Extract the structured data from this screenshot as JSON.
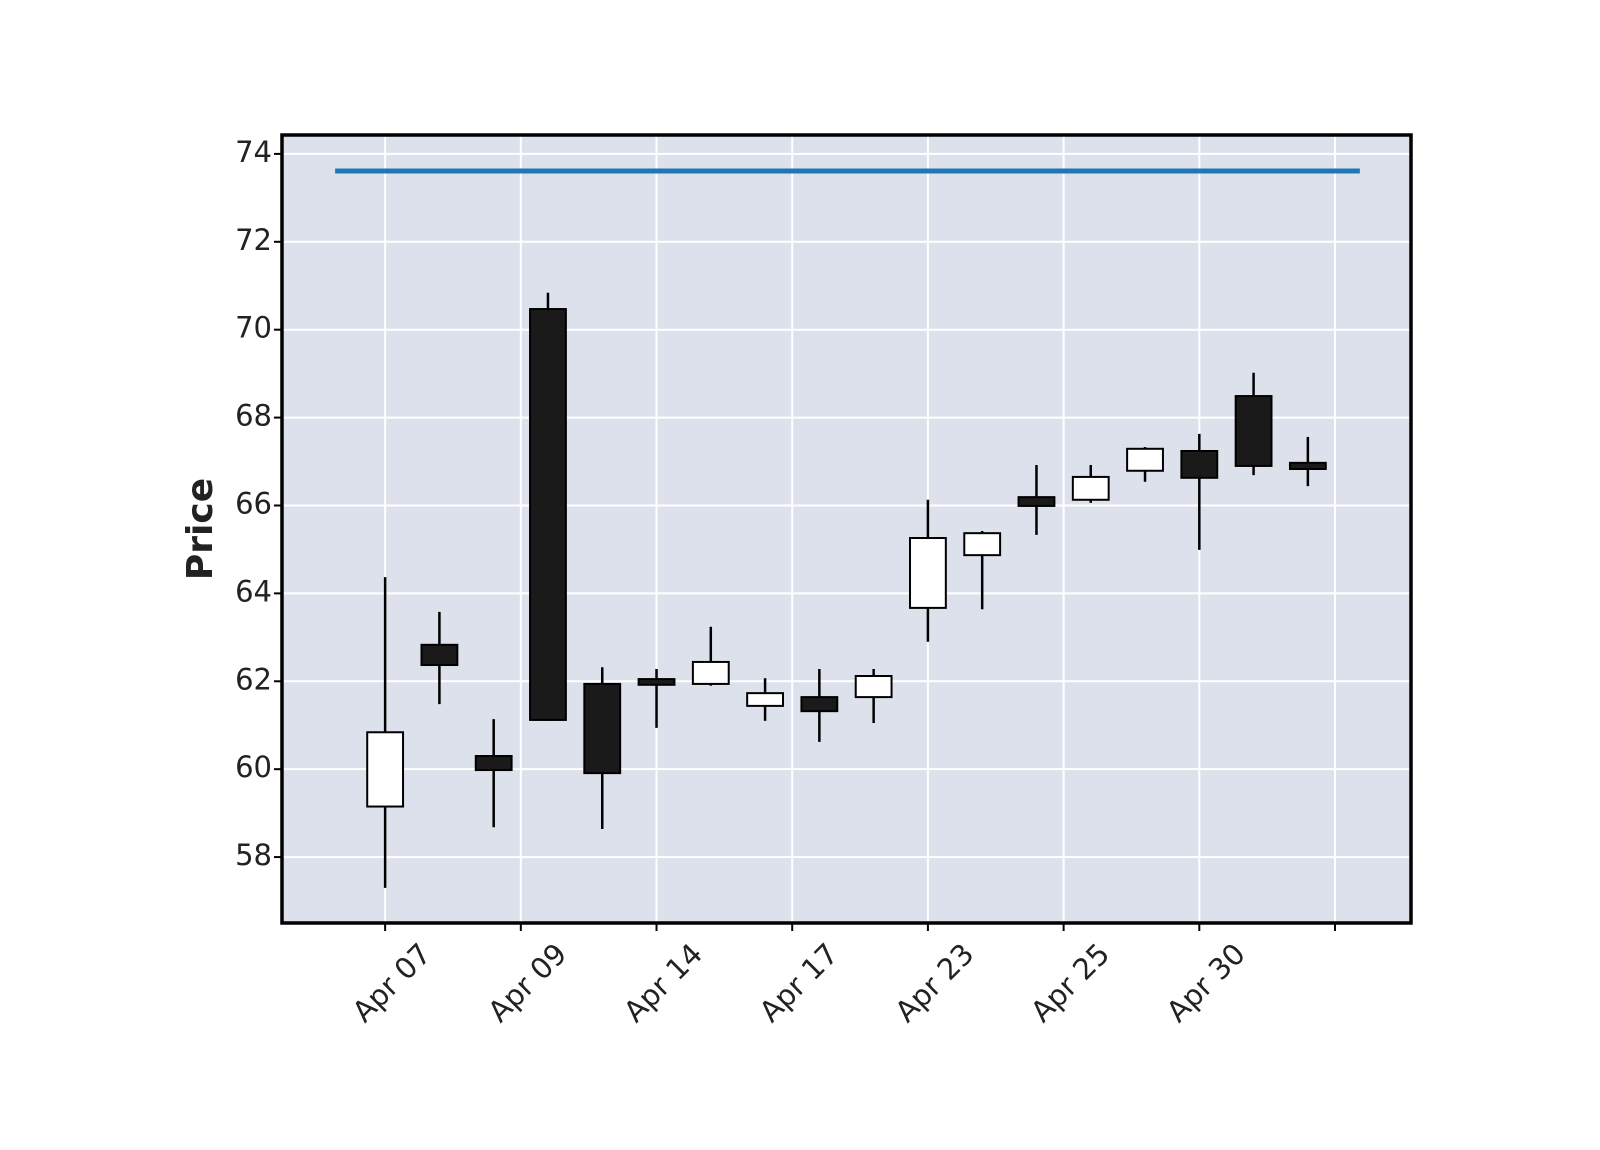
{
  "chart_data": {
    "type": "candlestick",
    "y_label": "Price",
    "x": [
      0,
      1,
      2,
      3,
      4,
      5,
      6,
      7,
      8,
      9,
      10,
      11,
      12,
      13,
      14,
      15,
      16,
      17
    ],
    "open": [
      59.15,
      62.83,
      60.3,
      70.47,
      61.94,
      62.05,
      61.94,
      61.44,
      61.64,
      61.64,
      63.67,
      64.87,
      66.19,
      66.13,
      66.79,
      67.24,
      68.49,
      66.97
    ],
    "high": [
      64.37,
      63.58,
      61.14,
      70.84,
      62.32,
      62.28,
      63.24,
      62.07,
      62.28,
      62.28,
      66.13,
      65.42,
      66.92,
      66.92,
      67.33,
      67.63,
      69.02,
      67.56
    ],
    "low": [
      57.3,
      61.48,
      58.68,
      61.1,
      58.64,
      60.94,
      61.9,
      61.1,
      60.62,
      61.05,
      62.9,
      63.64,
      65.33,
      66.06,
      66.54,
      64.99,
      66.69,
      66.44
    ],
    "close": [
      60.84,
      62.37,
      59.98,
      61.12,
      59.91,
      61.92,
      62.44,
      61.73,
      61.32,
      62.12,
      65.26,
      65.37,
      65.99,
      66.65,
      67.29,
      66.63,
      66.9,
      66.83
    ],
    "up_color": "#ffffff",
    "down_color": "#1a1a1a",
    "edge_color": "#000000",
    "hline": {
      "value": 73.61,
      "color": "#1f77b4"
    },
    "background": "#dde1ec",
    "grid": true,
    "xlim": [
      -1.9,
      18.9
    ],
    "xticks": [
      {
        "value": 0,
        "label": "Apr 07"
      },
      {
        "value": 2.5,
        "label": "Apr 09"
      },
      {
        "value": 5,
        "label": "Apr 14"
      },
      {
        "value": 7.5,
        "label": "Apr 17"
      },
      {
        "value": 10,
        "label": "Apr 23"
      },
      {
        "value": 12.5,
        "label": "Apr 25"
      },
      {
        "value": 15,
        "label": "Apr 30"
      },
      {
        "value": 17.5,
        "label": null
      }
    ],
    "ylim": [
      56.5,
      74.43
    ],
    "yticks": [
      58,
      60,
      62,
      64,
      66,
      68,
      70,
      72,
      74
    ]
  }
}
